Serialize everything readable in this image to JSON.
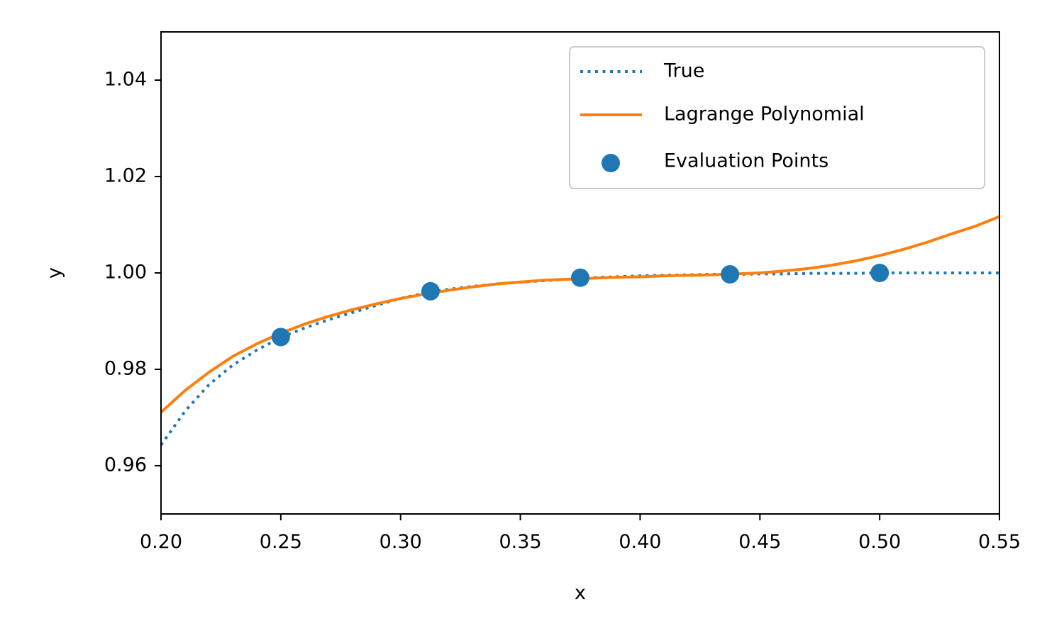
{
  "chart_data": {
    "type": "line",
    "title": "",
    "xlabel": "x",
    "ylabel": "y",
    "xlim": [
      0.2,
      0.55
    ],
    "ylim": [
      0.95,
      1.05
    ],
    "xticks": [
      0.2,
      0.25,
      0.3,
      0.35,
      0.4,
      0.45,
      0.5,
      0.55
    ],
    "xtick_labels": [
      "0.20",
      "0.25",
      "0.30",
      "0.35",
      "0.40",
      "0.45",
      "0.50",
      "0.55"
    ],
    "yticks": [
      0.96,
      0.98,
      1.0,
      1.02,
      1.04
    ],
    "ytick_labels": [
      "0.96",
      "0.98",
      "1.00",
      "1.02",
      "1.04"
    ],
    "grid": false,
    "legend_position": "top-right",
    "series": [
      {
        "name": "True",
        "style": "dotted",
        "color": "#1f77b4",
        "x": [
          0.2,
          0.21,
          0.22,
          0.23,
          0.24,
          0.25,
          0.26,
          0.27,
          0.28,
          0.29,
          0.3,
          0.31,
          0.32,
          0.33,
          0.34,
          0.35,
          0.36,
          0.37,
          0.38,
          0.39,
          0.4,
          0.41,
          0.42,
          0.43,
          0.44,
          0.45,
          0.46,
          0.47,
          0.48,
          0.49,
          0.5,
          0.51,
          0.52,
          0.53,
          0.54,
          0.55
        ],
        "y": [
          0.9643,
          0.9713,
          0.9768,
          0.9809,
          0.984,
          0.9866,
          0.9886,
          0.9903,
          0.9918,
          0.9933,
          0.9947,
          0.9958,
          0.9966,
          0.9972,
          0.9977,
          0.9981,
          0.9984,
          0.9987,
          0.999,
          0.9992,
          0.9994,
          0.9995,
          0.9996,
          0.9997,
          0.9997,
          0.9998,
          0.9998,
          0.9999,
          0.9999,
          0.9999,
          1.0,
          1.0,
          1.0,
          1.0,
          1.0,
          1.0
        ]
      },
      {
        "name": "Lagrange Polynomial",
        "style": "solid",
        "color": "#ff7f0e",
        "x": [
          0.2,
          0.21,
          0.22,
          0.23,
          0.24,
          0.25,
          0.26,
          0.27,
          0.28,
          0.29,
          0.3,
          0.31,
          0.32,
          0.33,
          0.34,
          0.35,
          0.36,
          0.37,
          0.38,
          0.39,
          0.4,
          0.41,
          0.42,
          0.43,
          0.44,
          0.45,
          0.46,
          0.47,
          0.48,
          0.49,
          0.5,
          0.51,
          0.52,
          0.53,
          0.54,
          0.55
        ],
        "y": [
          0.9711,
          0.9756,
          0.9794,
          0.9827,
          0.9853,
          0.9875,
          0.9894,
          0.991,
          0.9924,
          0.9936,
          0.9947,
          0.9956,
          0.9964,
          0.9971,
          0.9977,
          0.9981,
          0.9985,
          0.9987,
          0.9989,
          0.9991,
          0.9992,
          0.9994,
          0.9995,
          0.9996,
          0.9998,
          1.0,
          1.0004,
          1.0009,
          1.0016,
          1.0025,
          1.0036,
          1.0049,
          1.0064,
          1.0081,
          1.0097,
          1.0117
        ]
      }
    ],
    "scatter": {
      "name": "Evaluation Points",
      "color": "#1f77b4",
      "x": [
        0.25,
        0.3125,
        0.375,
        0.4375,
        0.5
      ],
      "y": [
        0.9867,
        0.9962,
        0.999,
        0.9997,
        1.0
      ]
    }
  }
}
